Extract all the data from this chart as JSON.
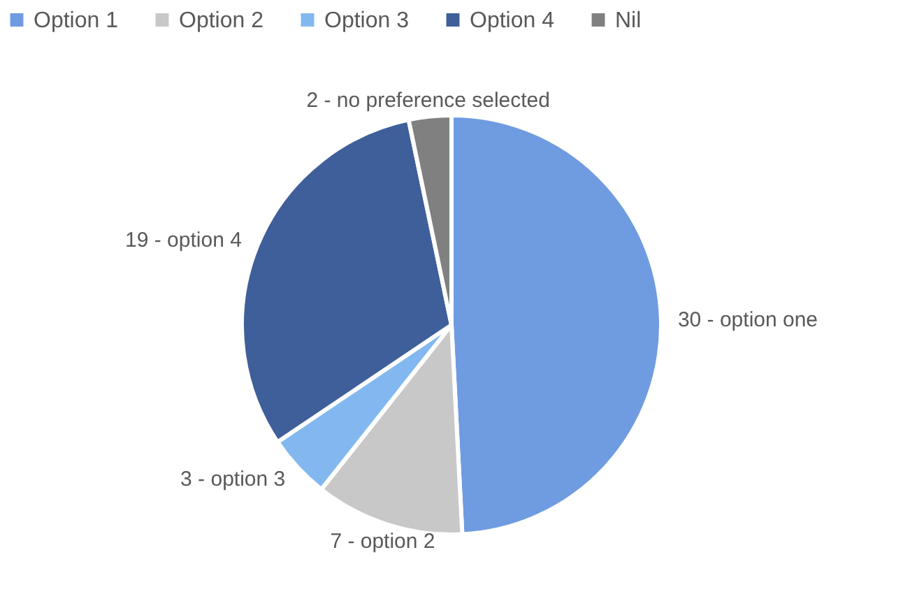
{
  "chart_data": {
    "type": "pie",
    "categories": [
      "Option 1",
      "Option 2",
      "Option 3",
      "Option 4",
      "Nil"
    ],
    "values": [
      30,
      7,
      3,
      19,
      2
    ],
    "colors": [
      "#6f9be0",
      "#c8c8c8",
      "#82b8ef",
      "#3f5f9a",
      "#808080"
    ],
    "value_labels": [
      "30 - option one",
      "7 - option 2",
      "3 - option 3",
      "19 - option 4",
      "2 - no preference selected"
    ],
    "legend": "top"
  }
}
